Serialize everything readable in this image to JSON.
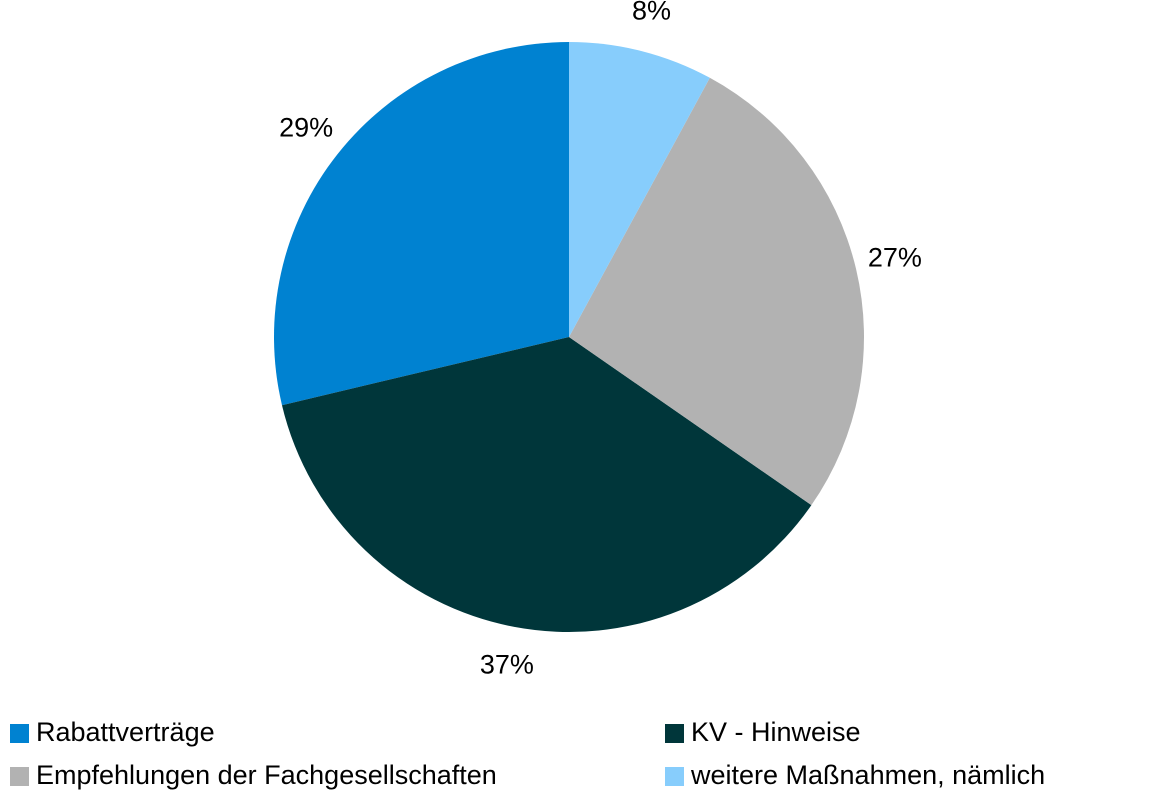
{
  "chart_data": {
    "type": "pie",
    "categories": [
      "Rabattverträge",
      "KV - Hinweise",
      "Empfehlungen der Fachgesellschaften",
      "weitere Maßnahmen, nämlich"
    ],
    "values": [
      29,
      37,
      27,
      8
    ],
    "value_labels": [
      "29%",
      "37%",
      "27%",
      "8%"
    ],
    "colors": [
      "#0082d1",
      "#00363a",
      "#b2b2b2",
      "#87cdfc"
    ],
    "legend": "bottom"
  }
}
